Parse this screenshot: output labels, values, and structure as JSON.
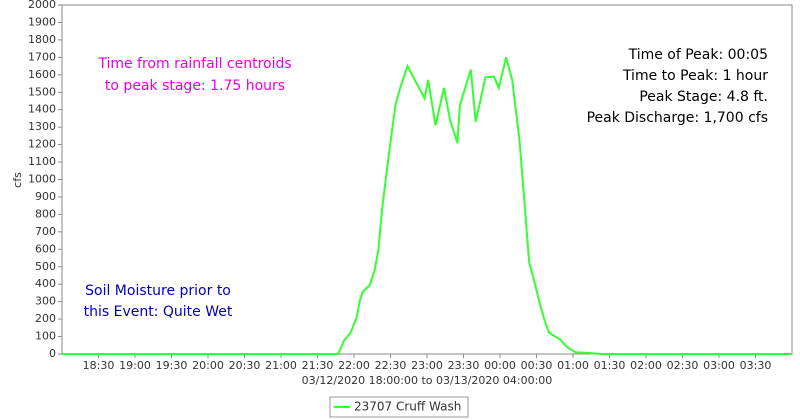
{
  "chart_data": {
    "type": "line",
    "y_label": "cfs",
    "x_label": "03/12/2020 18:00:00 to 03/13/2020 04:00:00",
    "xlim": [
      "18:00",
      "04:00"
    ],
    "xticks": [
      "18:30",
      "19:00",
      "19:30",
      "20:00",
      "20:30",
      "21:00",
      "21:30",
      "22:00",
      "22:30",
      "23:00",
      "23:30",
      "00:00",
      "00:30",
      "01:00",
      "01:30",
      "02:00",
      "02:30",
      "03:00",
      "03:30"
    ],
    "ylim": [
      0,
      2000
    ],
    "yticks": [
      0,
      100,
      200,
      300,
      400,
      500,
      600,
      700,
      800,
      900,
      1000,
      1100,
      1200,
      1300,
      1400,
      1500,
      1600,
      1700,
      1800,
      1900,
      2000
    ],
    "x": [
      "18:00",
      "21:47",
      "21:52",
      "21:57",
      "22:02",
      "22:05",
      "22:07",
      "22:13",
      "22:17",
      "22:20",
      "22:23",
      "22:28",
      "22:34",
      "22:38",
      "22:44",
      "22:50",
      "22:58",
      "23:01",
      "23:07",
      "23:14",
      "23:19",
      "23:25",
      "23:27",
      "23:36",
      "23:40",
      "23:48",
      "23:55",
      "23:59",
      "00:05",
      "00:10",
      "00:12",
      "00:16",
      "00:20",
      "00:24",
      "00:29",
      "00:33",
      "00:37",
      "00:40",
      "00:43",
      "00:49",
      "00:56",
      "01:02",
      "01:14",
      "01:22",
      "04:00"
    ],
    "series": [
      {
        "name": "23707 Cruff Wash",
        "color": "#33ff33",
        "values": [
          0,
          0,
          80,
          120,
          205,
          310,
          355,
          395,
          480,
          595,
          825,
          1110,
          1425,
          1525,
          1650,
          1570,
          1465,
          1570,
          1310,
          1525,
          1340,
          1210,
          1425,
          1630,
          1330,
          1585,
          1590,
          1525,
          1700,
          1570,
          1455,
          1225,
          880,
          525,
          395,
          280,
          185,
          125,
          110,
          85,
          35,
          10,
          5,
          0,
          0
        ]
      }
    ],
    "annotations": [
      {
        "color": "#e600e6",
        "lines": [
          "Time from rainfall centroids",
          "to peak stage: 1.75 hours"
        ]
      },
      {
        "color": "#000000",
        "lines": [
          "Time of Peak: 00:05",
          "Time to Peak: 1 hour",
          "Peak Stage: 4.8 ft.",
          "Peak Discharge: 1,700 cfs"
        ]
      },
      {
        "color": "#0000b4",
        "lines": [
          "Soil Moisture prior to",
          "this Event: Quite Wet"
        ]
      }
    ]
  }
}
